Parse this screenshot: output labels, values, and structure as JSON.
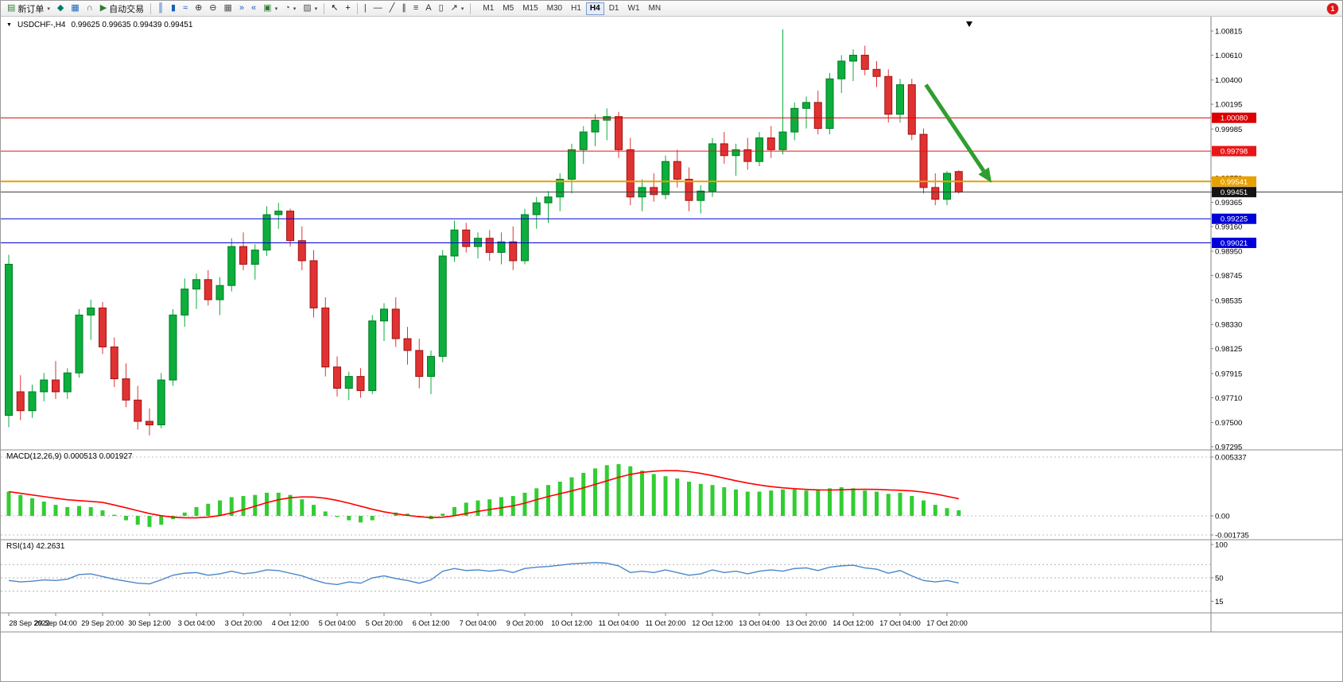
{
  "toolbar": {
    "dropdown_glyph": "▾",
    "notification_count": "1",
    "items": [
      {
        "type": "button",
        "name": "new-order-button",
        "icon": "new-order-icon",
        "glyph": "▤",
        "color": "#2e7d32",
        "label": "新订单",
        "dropdown": true
      },
      {
        "type": "button",
        "name": "market-watch-button",
        "icon": "market-watch-icon",
        "glyph": "◆",
        "color": "#00796b"
      },
      {
        "type": "button",
        "name": "navigator-button",
        "icon": "navigator-window-icon",
        "glyph": "▦",
        "color": "#1565c0"
      },
      {
        "type": "button",
        "name": "alerts-button",
        "icon": "headset-icon",
        "glyph": "∩",
        "color": "#555555"
      },
      {
        "type": "button",
        "name": "autotrading-button",
        "icon": "autotrading-play-icon",
        "glyph": "▶",
        "color": "#2e7d32",
        "label": "自动交易"
      },
      {
        "type": "sep"
      },
      {
        "type": "button",
        "name": "bar-chart-button",
        "icon": "ohlc-bars-icon",
        "glyph": "║",
        "color": "#1a5fb4"
      },
      {
        "type": "button",
        "name": "candlestick-chart-button",
        "icon": "candlestick-icon",
        "glyph": "▮",
        "color": "#1a5fb4"
      },
      {
        "type": "button",
        "name": "line-chart-button",
        "icon": "line-chart-icon",
        "glyph": "≈",
        "color": "#1a5fb4"
      },
      {
        "type": "button",
        "name": "zoom-in-button",
        "icon": "zoom-in-icon",
        "glyph": "⊕",
        "color": "#333333"
      },
      {
        "type": "button",
        "name": "zoom-out-button",
        "icon": "zoom-out-icon",
        "glyph": "⊖",
        "color": "#333333"
      },
      {
        "type": "button",
        "name": "tile-windows-button",
        "icon": "tile-windows-icon",
        "glyph": "▦",
        "color": "#555555"
      },
      {
        "type": "button",
        "name": "auto-scroll-button",
        "icon": "auto-scroll-icon",
        "glyph": "»",
        "color": "#1a5fb4"
      },
      {
        "type": "button",
        "name": "chart-shift-button",
        "icon": "chart-shift-icon",
        "glyph": "«",
        "color": "#1a5fb4"
      },
      {
        "type": "button",
        "name": "new-chart-button",
        "icon": "new-chart-icon",
        "glyph": "▣",
        "color": "#2e7d32",
        "dropdown": true
      },
      {
        "type": "button",
        "name": "profiles-button",
        "icon": "clock-icon",
        "glyph": "◔",
        "color": "#555555",
        "dropdown": true
      },
      {
        "type": "button",
        "name": "indicators-button",
        "icon": "indicator-chart-icon",
        "glyph": "▨",
        "color": "#555555",
        "dropdown": true
      },
      {
        "type": "sep"
      },
      {
        "type": "button",
        "name": "cursor-button",
        "icon": "cursor-arrow-icon",
        "glyph": "↖",
        "color": "#111111"
      },
      {
        "type": "button",
        "name": "crosshair-button",
        "icon": "crosshair-icon",
        "glyph": "+",
        "color": "#111111"
      },
      {
        "type": "sep"
      },
      {
        "type": "button",
        "name": "vertical-line-button",
        "icon": "vertical-line-icon",
        "glyph": "|",
        "color": "#333333"
      },
      {
        "type": "button",
        "name": "horizontal-line-button",
        "icon": "horizontal-line-icon",
        "glyph": "—",
        "color": "#333333"
      },
      {
        "type": "button",
        "name": "trendline-button",
        "icon": "trendline-icon",
        "glyph": "╱",
        "color": "#333333"
      },
      {
        "type": "button",
        "name": "channel-button",
        "icon": "equidistant-channel-icon",
        "glyph": "∥",
        "color": "#333333"
      },
      {
        "type": "button",
        "name": "fibonacci-button",
        "icon": "fibonacci-icon",
        "glyph": "≡",
        "color": "#333333"
      },
      {
        "type": "button",
        "name": "text-button",
        "icon": "text-icon",
        "glyph": "A",
        "color": "#333333"
      },
      {
        "type": "button",
        "name": "text-label-button",
        "icon": "text-label-icon",
        "glyph": "▯",
        "color": "#333333"
      },
      {
        "type": "button",
        "name": "arrows-button",
        "icon": "arrow-objects-icon",
        "glyph": "↗",
        "color": "#333333",
        "dropdown": true
      },
      {
        "type": "sep"
      }
    ],
    "timeframes": [
      "M1",
      "M5",
      "M15",
      "M30",
      "H1",
      "H4",
      "D1",
      "W1",
      "MN"
    ],
    "active_timeframe": "H4"
  },
  "chart_header": {
    "dropdown_glyph": "▼",
    "symbol_period": "USDCHF-,H4",
    "ohlc": "0.99625 0.99635 0.99439 0.99451"
  },
  "chart_data": {
    "type": "candlestick",
    "symbol": "USDCHF-",
    "timeframe": "H4",
    "colors": {
      "bull": "#0cae3c",
      "bull_border": "#007a24",
      "bear": "#e03232",
      "bear_border": "#a01212",
      "macd_hist": "#32cd32",
      "macd_signal": "#ff0000",
      "rsi_line": "#4a86c8",
      "axis_line": "#808080",
      "separator": "#8c8c8c",
      "grid_dashed": "#bcbcbc"
    },
    "y_ticks": [
      "1.00815",
      "1.00610",
      "1.00400",
      "1.00195",
      "0.99985",
      "0.99780",
      "0.99570",
      "0.99365",
      "0.99160",
      "0.98950",
      "0.98745",
      "0.98535",
      "0.98330",
      "0.98125",
      "0.97915",
      "0.97710",
      "0.97500",
      "0.97295"
    ],
    "candles": [
      [
        0.9756,
        0.9892,
        0.9746,
        0.9884
      ],
      [
        0.9776,
        0.979,
        0.9752,
        0.976
      ],
      [
        0.976,
        0.9782,
        0.9754,
        0.9776
      ],
      [
        0.9776,
        0.9792,
        0.9768,
        0.9786
      ],
      [
        0.9786,
        0.9802,
        0.977,
        0.9776
      ],
      [
        0.9776,
        0.9796,
        0.977,
        0.9792
      ],
      [
        0.9792,
        0.9846,
        0.9788,
        0.9841
      ],
      [
        0.9841,
        0.9854,
        0.982,
        0.9847
      ],
      [
        0.9847,
        0.9852,
        0.9808,
        0.9814
      ],
      [
        0.9814,
        0.9822,
        0.978,
        0.9787
      ],
      [
        0.9787,
        0.98,
        0.9763,
        0.9769
      ],
      [
        0.9769,
        0.9781,
        0.9744,
        0.9751
      ],
      [
        0.9751,
        0.9762,
        0.9739,
        0.9748
      ],
      [
        0.9748,
        0.9792,
        0.9745,
        0.9786
      ],
      [
        0.9786,
        0.9846,
        0.9781,
        0.9841
      ],
      [
        0.9841,
        0.9872,
        0.9831,
        0.9863
      ],
      [
        0.9863,
        0.9876,
        0.9846,
        0.9871
      ],
      [
        0.9871,
        0.9879,
        0.9849,
        0.9854
      ],
      [
        0.9854,
        0.9873,
        0.9841,
        0.9866
      ],
      [
        0.9866,
        0.9906,
        0.9861,
        0.9899
      ],
      [
        0.9899,
        0.9911,
        0.9879,
        0.9884
      ],
      [
        0.9884,
        0.9901,
        0.9871,
        0.9896
      ],
      [
        0.9896,
        0.9933,
        0.9891,
        0.9926
      ],
      [
        0.9926,
        0.9936,
        0.9914,
        0.9929
      ],
      [
        0.9929,
        0.9931,
        0.9899,
        0.9904
      ],
      [
        0.9904,
        0.9916,
        0.9879,
        0.9887
      ],
      [
        0.9887,
        0.9896,
        0.9839,
        0.9847
      ],
      [
        0.9847,
        0.9856,
        0.9789,
        0.9797
      ],
      [
        0.9797,
        0.9806,
        0.9772,
        0.9779
      ],
      [
        0.9779,
        0.9793,
        0.9769,
        0.9789
      ],
      [
        0.9789,
        0.9796,
        0.9771,
        0.9777
      ],
      [
        0.9777,
        0.9841,
        0.9774,
        0.9836
      ],
      [
        0.9836,
        0.9851,
        0.9819,
        0.9846
      ],
      [
        0.9846,
        0.9856,
        0.9814,
        0.9821
      ],
      [
        0.9821,
        0.9831,
        0.9799,
        0.9811
      ],
      [
        0.9811,
        0.9821,
        0.9779,
        0.9789
      ],
      [
        0.9789,
        0.9811,
        0.9774,
        0.9806
      ],
      [
        0.9806,
        0.9896,
        0.9801,
        0.9891
      ],
      [
        0.9891,
        0.9921,
        0.9886,
        0.9913
      ],
      [
        0.9913,
        0.9919,
        0.9894,
        0.9899
      ],
      [
        0.9899,
        0.9911,
        0.9889,
        0.9906
      ],
      [
        0.9906,
        0.9913,
        0.9887,
        0.9894
      ],
      [
        0.9894,
        0.9911,
        0.9884,
        0.9903
      ],
      [
        0.9903,
        0.9916,
        0.9879,
        0.9887
      ],
      [
        0.9887,
        0.9931,
        0.9884,
        0.9926
      ],
      [
        0.9926,
        0.9941,
        0.9914,
        0.9936
      ],
      [
        0.9936,
        0.9946,
        0.9919,
        0.9941
      ],
      [
        0.9941,
        0.9961,
        0.9929,
        0.9956
      ],
      [
        0.9956,
        0.9986,
        0.9944,
        0.9981
      ],
      [
        0.9981,
        1.0001,
        0.9969,
        0.9996
      ],
      [
        0.9996,
        1.0011,
        0.9984,
        1.0006
      ],
      [
        1.0006,
        1.0016,
        0.9989,
        1.0009
      ],
      [
        1.0009,
        1.0013,
        0.9974,
        0.9981
      ],
      [
        0.9981,
        0.9991,
        0.9934,
        0.9941
      ],
      [
        0.9941,
        0.9956,
        0.9929,
        0.9949
      ],
      [
        0.9949,
        0.9961,
        0.9937,
        0.9943
      ],
      [
        0.9943,
        0.9976,
        0.9939,
        0.9971
      ],
      [
        0.9971,
        0.9981,
        0.9949,
        0.9956
      ],
      [
        0.9956,
        0.9966,
        0.9929,
        0.9938
      ],
      [
        0.9938,
        0.9951,
        0.9927,
        0.9946
      ],
      [
        0.9946,
        0.9991,
        0.9941,
        0.9986
      ],
      [
        0.9986,
        0.9996,
        0.9969,
        0.9976
      ],
      [
        0.9976,
        0.9986,
        0.9959,
        0.9981
      ],
      [
        0.9981,
        0.9991,
        0.9964,
        0.9971
      ],
      [
        0.9971,
        0.9996,
        0.9967,
        0.9991
      ],
      [
        0.9991,
        1.0001,
        0.9974,
        0.9981
      ],
      [
        0.9981,
        1.0083,
        0.9977,
        0.9996
      ],
      [
        0.9996,
        1.0021,
        0.9989,
        1.0016
      ],
      [
        1.0016,
        1.0026,
        0.9999,
        1.0021
      ],
      [
        1.0021,
        1.0031,
        0.9994,
        0.9999
      ],
      [
        0.9999,
        1.0046,
        0.9994,
        1.0041
      ],
      [
        1.0041,
        1.0061,
        1.0029,
        1.0056
      ],
      [
        1.0056,
        1.0066,
        1.0039,
        1.0061
      ],
      [
        1.0061,
        1.0069,
        1.0044,
        1.0049
      ],
      [
        1.0049,
        1.0056,
        1.0034,
        1.0043
      ],
      [
        1.0043,
        1.0049,
        1.0004,
        1.0011
      ],
      [
        1.0011,
        1.0041,
        1.0004,
        1.0036
      ],
      [
        1.0036,
        1.0041,
        0.9989,
        0.9994
      ],
      [
        0.9994,
        0.9999,
        0.9944,
        0.9949
      ],
      [
        0.9949,
        0.9961,
        0.9934,
        0.9939
      ],
      [
        0.9939,
        0.9963,
        0.9934,
        0.9961
      ],
      [
        0.99625,
        0.99635,
        0.99439,
        0.99451
      ]
    ],
    "hlines": [
      {
        "price": 1.0008,
        "label": "1.00080",
        "color": "#dc0000",
        "label_bg": "#dc0000",
        "width": 1
      },
      {
        "price": 0.99798,
        "label": "0.99798",
        "color": "#e81717",
        "label_bg": "#e81717",
        "width": 1
      },
      {
        "price": 0.99541,
        "label": "0.99541",
        "color": "#e8a000",
        "label_bg": "#e8a000",
        "width": 2
      },
      {
        "price": 0.99225,
        "label": "0.99225",
        "color": "#0000d8",
        "label_bg": "#0000d8",
        "width": 1
      },
      {
        "price": 0.99021,
        "label": "0.99021",
        "color": "#0000d8",
        "label_bg": "#0000d8",
        "width": 1
      }
    ],
    "bid": {
      "price": 0.99451,
      "label": "0.99451",
      "color": "#3c3c3c",
      "label_bg": "#141414"
    },
    "annotations": [
      {
        "type": "arrow",
        "from_bar": 78.2,
        "from_price": 1.0036,
        "to_bar": 83.8,
        "to_price": 0.9953,
        "color": "#2f9e2f",
        "width": 5
      }
    ],
    "macd": {
      "label": "MACD(12,26,9) 0.000513 0.001927",
      "ticks": [
        {
          "value": 0.005337,
          "label": "0.005337"
        },
        {
          "value": 0,
          "label": "0.00"
        },
        {
          "value": -0.001735,
          "label": "-0.001735"
        }
      ],
      "histogram": [
        0.0022,
        0.0019,
        0.0016,
        0.0013,
        0.001,
        0.0008,
        0.0009,
        0.0008,
        0.0005,
        0.0001,
        -0.0004,
        -0.0008,
        -0.001,
        -0.0008,
        -0.0003,
        0.0003,
        0.0008,
        0.0011,
        0.0014,
        0.0017,
        0.0018,
        0.0019,
        0.0021,
        0.0021,
        0.0019,
        0.0015,
        0.001,
        0.0004,
        -0.0001,
        -0.0004,
        -0.0006,
        -0.0004,
        0.0,
        0.0003,
        0.0002,
        -0.0001,
        -0.0003,
        0.0002,
        0.0008,
        0.0012,
        0.0014,
        0.0015,
        0.0017,
        0.0018,
        0.0021,
        0.0025,
        0.0028,
        0.0031,
        0.0035,
        0.0039,
        0.0043,
        0.0046,
        0.0047,
        0.0045,
        0.0041,
        0.0038,
        0.0036,
        0.0034,
        0.0031,
        0.0029,
        0.0028,
        0.0026,
        0.0024,
        0.0022,
        0.0022,
        0.0023,
        0.0024,
        0.0024,
        0.0023,
        0.0024,
        0.0025,
        0.0026,
        0.0025,
        0.0023,
        0.0022,
        0.002,
        0.0021,
        0.0018,
        0.0014,
        0.001,
        0.0007,
        0.000513
      ]
    },
    "rsi": {
      "label": "RSI(14) 42.2631",
      "ticks": [
        {
          "value": 100,
          "label": "100"
        },
        {
          "value": 50,
          "label": "50"
        },
        {
          "value": 15,
          "label": "15"
        }
      ],
      "levels": [
        70,
        50,
        30
      ],
      "values": [
        46,
        44,
        45,
        47,
        46,
        48,
        55,
        56,
        52,
        48,
        45,
        42,
        41,
        47,
        54,
        57,
        58,
        54,
        56,
        60,
        56,
        58,
        62,
        61,
        57,
        53,
        47,
        42,
        40,
        44,
        42,
        50,
        53,
        49,
        46,
        42,
        47,
        60,
        64,
        61,
        62,
        60,
        62,
        58,
        64,
        66,
        67,
        69,
        71,
        72,
        73,
        72,
        68,
        58,
        60,
        58,
        62,
        58,
        54,
        56,
        62,
        58,
        60,
        56,
        60,
        62,
        60,
        64,
        65,
        61,
        66,
        68,
        69,
        65,
        63,
        57,
        61,
        53,
        46,
        44,
        46,
        42.3
      ]
    },
    "x_labels": [
      "28 Sep 2022",
      "29 Sep 04:00",
      "29 Sep 20:00",
      "30 Sep 12:00",
      "3 Oct 04:00",
      "3 Oct 20:00",
      "4 Oct 12:00",
      "5 Oct 04:00",
      "5 Oct 20:00",
      "6 Oct 12:00",
      "7 Oct 04:00",
      "9 Oct 20:00",
      "10 Oct 12:00",
      "11 Oct 04:00",
      "11 Oct 20:00",
      "12 Oct 12:00",
      "13 Oct 04:00",
      "13 Oct 20:00",
      "14 Oct 12:00",
      "17 Oct 04:00",
      "17 Oct 20:00"
    ]
  }
}
